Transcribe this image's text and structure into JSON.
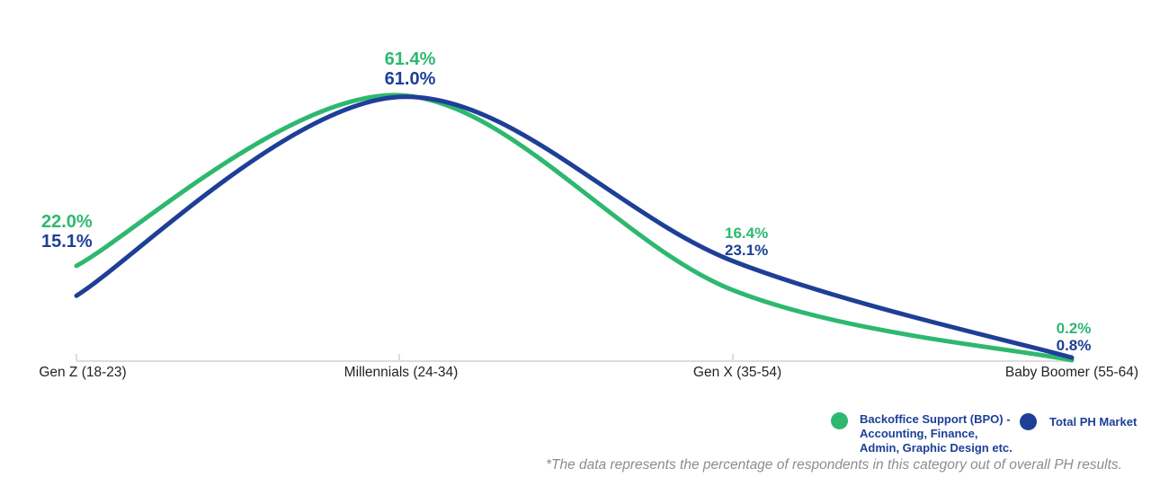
{
  "chart_data": {
    "type": "line",
    "title": "",
    "categories": [
      "Gen Z (18-23)",
      "Millennials (24-34)",
      "Gen X (35-54)",
      "Baby Boomer (55-64)"
    ],
    "series": [
      {
        "name": "Backoffice Support (BPO) - Accounting, Finance, Admin, Graphic Design etc.",
        "color": "#2eb86f",
        "values": [
          22.0,
          61.4,
          16.4,
          0.2
        ]
      },
      {
        "name": "Total PH Market",
        "color": "#1e3f97",
        "values": [
          15.1,
          61.0,
          23.1,
          0.8
        ]
      }
    ],
    "value_label_format": "{value}%",
    "ylim": [
      0,
      65
    ],
    "grid": false,
    "x_axis_visible": true,
    "y_axis_visible": false,
    "legend_position": "bottom-right"
  },
  "legend": {
    "items": [
      {
        "lines": [
          "Backoffice Support (BPO) -",
          "Accounting, Finance,",
          "Admin, Graphic Design etc."
        ],
        "color": "#2eb86f"
      },
      {
        "lines": [
          "Total PH Market"
        ],
        "color": "#1e3f97"
      }
    ]
  },
  "footnote": "*The data represents the percentage of respondents in this category out of overall PH results.",
  "colors": {
    "green": "#2eb86f",
    "navy": "#1e3f97",
    "axis": "#dcdcdc",
    "category_label": "#232323",
    "footnote_gray": "#8d8d90"
  }
}
